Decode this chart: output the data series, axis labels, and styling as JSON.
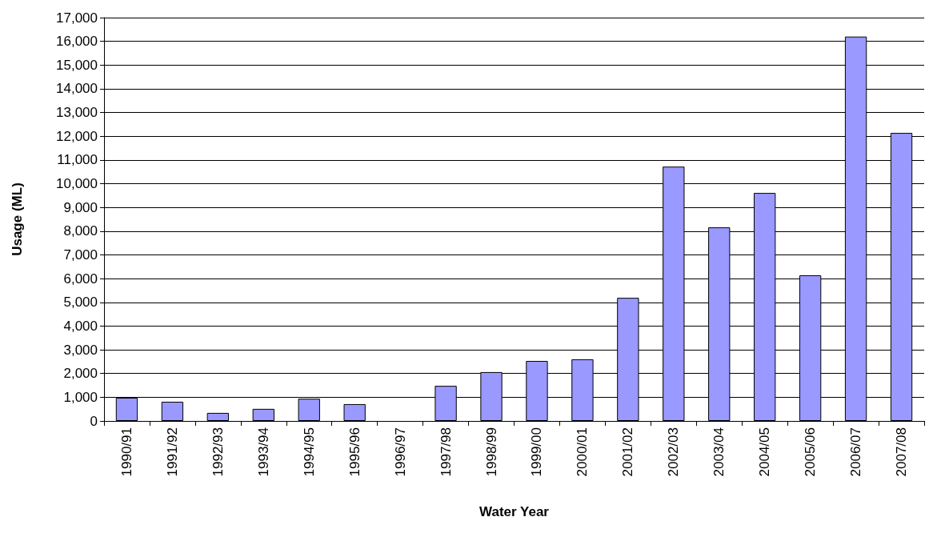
{
  "chart_data": {
    "type": "bar",
    "xlabel": "Water Year",
    "ylabel": "Usage (ML)",
    "categories": [
      "1990/91",
      "1991/92",
      "1992/93",
      "1993/94",
      "1994/95",
      "1995/96",
      "1996/97",
      "1997/98",
      "1998/99",
      "1999/00",
      "2000/01",
      "2001/02",
      "2002/03",
      "2003/04",
      "2004/05",
      "2005/06",
      "2006/07",
      "2007/08"
    ],
    "values": [
      980,
      810,
      340,
      510,
      940,
      710,
      null,
      1480,
      2060,
      2530,
      2600,
      5190,
      10720,
      8160,
      9610,
      6140,
      16200,
      12140
    ],
    "color": "#9999ff",
    "ylim": [
      0,
      17000
    ],
    "yticks": [
      0,
      {
        "value": 1000,
        "label": "1,000"
      },
      {
        "value": 2000,
        "label": "2,000"
      },
      {
        "value": 3000,
        "label": "3,000"
      },
      {
        "value": 4000,
        "label": "4,000"
      },
      {
        "value": 5000,
        "label": "5,000"
      },
      {
        "value": 6000,
        "label": "6,000"
      },
      {
        "value": 7000,
        "label": "7,000"
      },
      {
        "value": 8000,
        "label": "8,000"
      },
      {
        "value": 9000,
        "label": "9,000"
      },
      {
        "value": 10000,
        "label": "10,000"
      },
      {
        "value": 11000,
        "label": "11,000"
      },
      {
        "value": 12000,
        "label": "12,000"
      },
      {
        "value": 13000,
        "label": "13,000"
      },
      {
        "value": 14000,
        "label": "14,000"
      },
      {
        "value": 15000,
        "label": "15,000"
      },
      {
        "value": 16000,
        "label": "16,000"
      },
      {
        "value": 17000,
        "label": "17,000"
      }
    ],
    "grid": "y"
  }
}
